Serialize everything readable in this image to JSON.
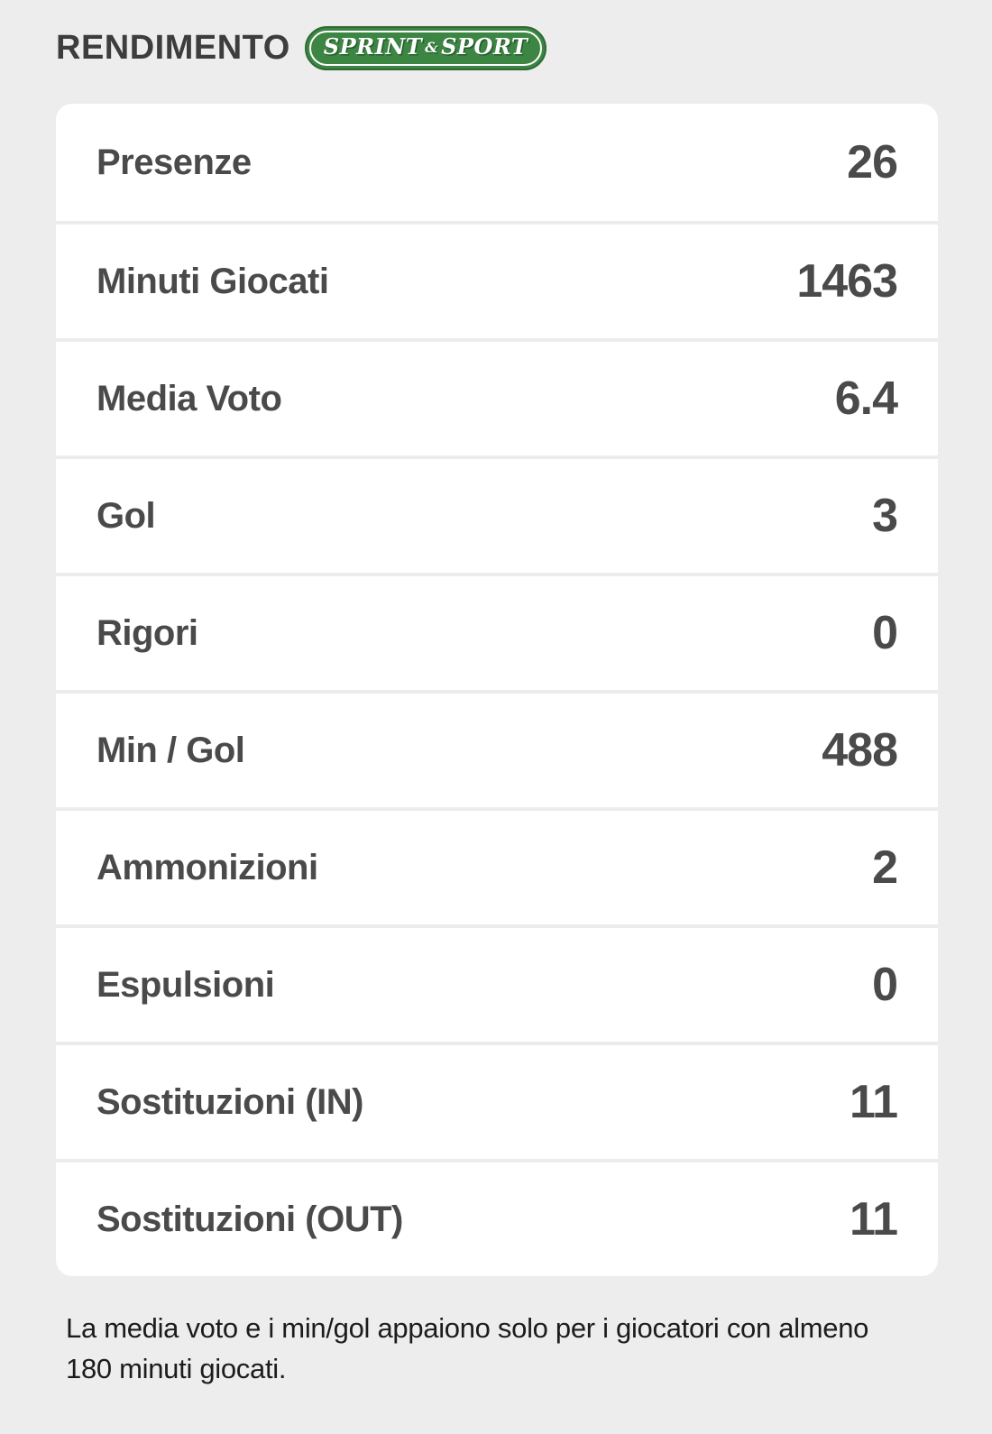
{
  "header": {
    "title": "RENDIMENTO",
    "badge": {
      "label_left": "SPRINT",
      "label_amp": "&",
      "label_right": "SPORT",
      "bg_color": "#3c8543"
    }
  },
  "stats": {
    "rows": [
      {
        "label": "Presenze",
        "value": "26"
      },
      {
        "label": "Minuti Giocati",
        "value": "1463"
      },
      {
        "label": "Media Voto",
        "value": "6.4"
      },
      {
        "label": "Gol",
        "value": "3"
      },
      {
        "label": "Rigori",
        "value": "0"
      },
      {
        "label": "Min / Gol",
        "value": "488"
      },
      {
        "label": "Ammonizioni",
        "value": "2"
      },
      {
        "label": "Espulsioni",
        "value": "0"
      },
      {
        "label": "Sostituzioni (IN)",
        "value": "11"
      },
      {
        "label": "Sostituzioni (OUT)",
        "value": "11"
      }
    ]
  },
  "footnote": "La media voto e i min/gol appaiono solo per i giocatori con almeno 180 minuti giocati.",
  "colors": {
    "page_bg": "#ededed",
    "card_bg": "#ffffff",
    "divider": "#ececec",
    "text": "#4a4a4a",
    "badge_green": "#3c8543"
  }
}
